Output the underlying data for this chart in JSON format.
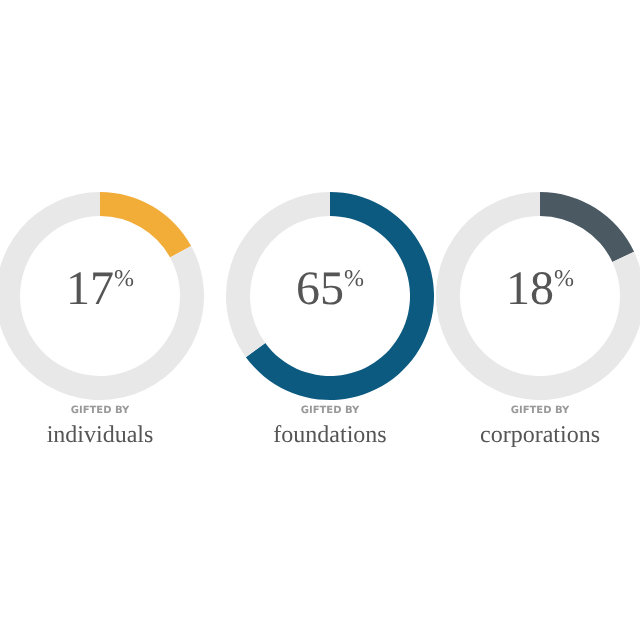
{
  "chart_data": [
    {
      "type": "donut",
      "categories": [
        null,
        null
      ],
      "xlabel": "individuals",
      "values": [
        17,
        83
      ],
      "colors": [
        "#f2ac38",
        "#e8e8e8"
      ],
      "annotations": [
        "17%",
        "GIFTED BY"
      ]
    },
    {
      "type": "donut",
      "categories": [
        null,
        null
      ],
      "xlabel": "foundations",
      "values": [
        65,
        35
      ],
      "colors": [
        "#0d5a80",
        "#e8e8e8"
      ],
      "annotations": [
        "65%",
        "GIFTED BY"
      ]
    },
    {
      "type": "donut",
      "categories": [
        null,
        null
      ],
      "xlabel": "corporations",
      "values": [
        18,
        82
      ],
      "colors": [
        "#4b5963",
        "#e8e8e8"
      ],
      "annotations": [
        "18%",
        "GIFTED BY"
      ]
    }
  ]
}
